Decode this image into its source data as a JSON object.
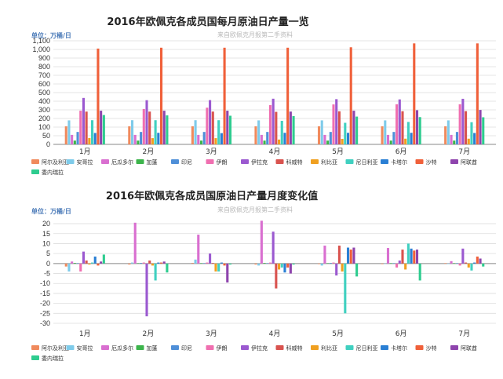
{
  "colors": {
    "series": [
      "#f08a5d",
      "#7ecbea",
      "#d96fd0",
      "#3cb44b",
      "#4f8fd8",
      "#f06fb0",
      "#9b59d0",
      "#d9534f",
      "#f0a020",
      "#40d0c0",
      "#2a7fd4",
      "#f0603a",
      "#8e44ad",
      "#2ecc8f"
    ],
    "grid": "#dddddd",
    "axis": "#888888",
    "unit": "#4a7ab8"
  },
  "chart_data": [
    {
      "type": "bar",
      "title": "2016年欧佩克各成员国每月原油日产量一览",
      "subtitle": "来自欧佩克月报第二手资料",
      "unit_label": "单位：万桶/日",
      "ylim": [
        0,
        1100
      ],
      "yticks": [
        0,
        50,
        100,
        200,
        300,
        400,
        500,
        600,
        700,
        800,
        900,
        1000,
        1100
      ],
      "ytick_labels": [
        "0",
        "50",
        "100",
        "200",
        "300",
        "400",
        "500",
        "600",
        "700",
        "800",
        "900",
        "1,000",
        "1,100"
      ],
      "categories": [
        "1月",
        "2月",
        "3月",
        "4月",
        "5月",
        "6月",
        "7月"
      ],
      "legend_rows": [
        13,
        1
      ],
      "series": [
        {
          "name": "阿尔及利亚",
          "values": [
            110,
            110,
            110,
            110,
            110,
            110,
            110
          ]
        },
        {
          "name": "安哥拉",
          "values": [
            178,
            180,
            180,
            178,
            178,
            178,
            178
          ]
        },
        {
          "name": "厄瓜多尔",
          "values": [
            55,
            55,
            55,
            55,
            55,
            55,
            55
          ]
        },
        {
          "name": "加蓬",
          "values": [
            22,
            22,
            22,
            22,
            22,
            22,
            22
          ]
        },
        {
          "name": "印尼",
          "values": [
            72,
            72,
            72,
            72,
            72,
            72,
            72
          ]
        },
        {
          "name": "伊朗",
          "values": [
            290,
            310,
            325,
            355,
            363,
            365,
            365
          ]
        },
        {
          "name": "伊拉克",
          "values": [
            438,
            412,
            413,
            429,
            424,
            421,
            428
          ]
        },
        {
          "name": "科威特",
          "values": [
            280,
            280,
            280,
            277,
            283,
            284,
            285
          ]
        },
        {
          "name": "利比亚",
          "values": [
            37,
            36,
            36,
            28,
            32,
            33,
            33
          ]
        },
        {
          "name": "尼日利亚",
          "values": [
            180,
            180,
            180,
            173,
            150,
            160,
            157
          ]
        },
        {
          "name": "卡塔尔",
          "values": [
            66,
            67,
            65,
            67,
            67,
            67,
            66
          ]
        },
        {
          "name": "沙特",
          "values": [
            1010,
            1020,
            1020,
            1020,
            1025,
            1070,
            1070
          ]
        },
        {
          "name": "阿联酋",
          "values": [
            290,
            290,
            290,
            280,
            290,
            296,
            299
          ]
        },
        {
          "name": "委内瑞拉",
          "values": [
            240,
            236,
            232,
            228,
            222,
            216,
            214
          ]
        }
      ]
    },
    {
      "type": "bar",
      "title": "2016年欧佩克各成员国原油日产量月度变化值",
      "subtitle": "来自欧佩克月报第二手资料",
      "unit_label": "单位：万桶/日",
      "ylim": [
        -30,
        22
      ],
      "yticks": [
        -30,
        -25,
        -20,
        -15,
        -10,
        -5,
        0,
        5,
        10,
        15,
        20
      ],
      "ytick_labels": [
        "-30",
        "-25",
        "-20",
        "-15",
        "-10",
        "-5",
        "0",
        "5",
        "10",
        "15",
        "20"
      ],
      "categories": [
        "1月",
        "2月",
        "3月",
        "4月",
        "5月",
        "6月",
        "7月"
      ],
      "legend_rows": [
        13,
        1
      ],
      "series": [
        {
          "name": "阿尔及利亚",
          "values": [
            -1.5,
            -0.5,
            0.3,
            -0.5,
            -0.3,
            -0.3,
            0.2
          ]
        },
        {
          "name": "安哥拉",
          "values": [
            -4,
            0.5,
            2,
            -1,
            -1,
            0,
            0
          ]
        },
        {
          "name": "厄瓜多尔",
          "values": [
            1,
            20.5,
            14.5,
            21.5,
            9,
            7.8,
            1.2
          ]
        },
        {
          "name": "加蓬",
          "values": [
            0.3,
            0.2,
            0.2,
            0.3,
            0.2,
            0.2,
            0.2
          ]
        },
        {
          "name": "印尼",
          "values": [
            0.2,
            0.3,
            0.2,
            0.2,
            0.3,
            0.2,
            0.2
          ]
        },
        {
          "name": "伊朗",
          "values": [
            -4,
            0.5,
            0.5,
            0.5,
            0.5,
            -2,
            -1
          ]
        },
        {
          "name": "伊拉克",
          "values": [
            6,
            -26.5,
            5,
            16,
            -6,
            1.5,
            7.5
          ]
        },
        {
          "name": "科威特",
          "values": [
            1.5,
            1.5,
            0.3,
            -12.5,
            9,
            7,
            0.5
          ]
        },
        {
          "name": "利比亚",
          "values": [
            -0.5,
            -1,
            -4,
            -3,
            -4,
            -3,
            -2
          ]
        },
        {
          "name": "尼日利亚",
          "values": [
            0.5,
            -8.5,
            -4,
            -2,
            -25,
            10,
            -3.5
          ]
        },
        {
          "name": "卡塔尔",
          "values": [
            3.5,
            0.5,
            0.5,
            -4.5,
            8,
            7.5,
            0.5
          ]
        },
        {
          "name": "沙特",
          "values": [
            -1,
            0.5,
            -1,
            -2,
            7,
            6.5,
            3.5
          ]
        },
        {
          "name": "阿联酋",
          "values": [
            1,
            1,
            -9.5,
            -5,
            8,
            7,
            2.5
          ]
        },
        {
          "name": "委内瑞拉",
          "values": [
            4.5,
            -4.5,
            -0.5,
            -0.5,
            -6.5,
            -8.5,
            -1.5
          ]
        }
      ]
    }
  ]
}
